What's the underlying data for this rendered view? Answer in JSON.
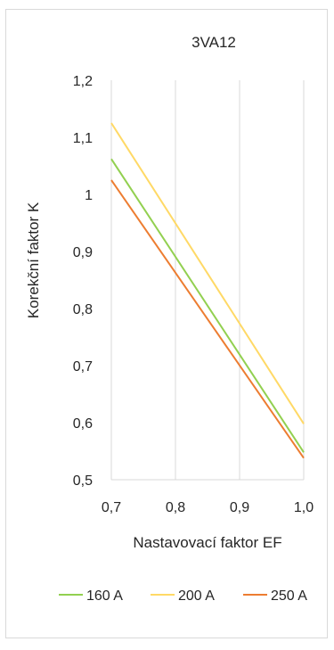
{
  "chart_data": {
    "type": "line",
    "title": "3VA12",
    "xlabel": "Nastavovací faktor  EF",
    "ylabel": "Korekční faktor K",
    "x": [
      0.7,
      1.0
    ],
    "xlim": [
      0.7,
      1.0
    ],
    "ylim": [
      0.5,
      1.2
    ],
    "x_ticks": [
      "0,7",
      "0,8",
      "0,9",
      "1,0"
    ],
    "y_ticks": [
      "0,5",
      "0,6",
      "0,7",
      "0,8",
      "0,9",
      "1",
      "1,1",
      "1,2"
    ],
    "grid": "vertical",
    "legend_position": "bottom",
    "series": [
      {
        "name": "160 A",
        "color": "#92d050",
        "values": [
          1.062,
          0.548
        ]
      },
      {
        "name": "200 A",
        "color": "#ffd966",
        "values": [
          1.125,
          0.598
        ]
      },
      {
        "name": "250 A",
        "color": "#ed7d31",
        "values": [
          1.025,
          0.538
        ]
      }
    ]
  }
}
